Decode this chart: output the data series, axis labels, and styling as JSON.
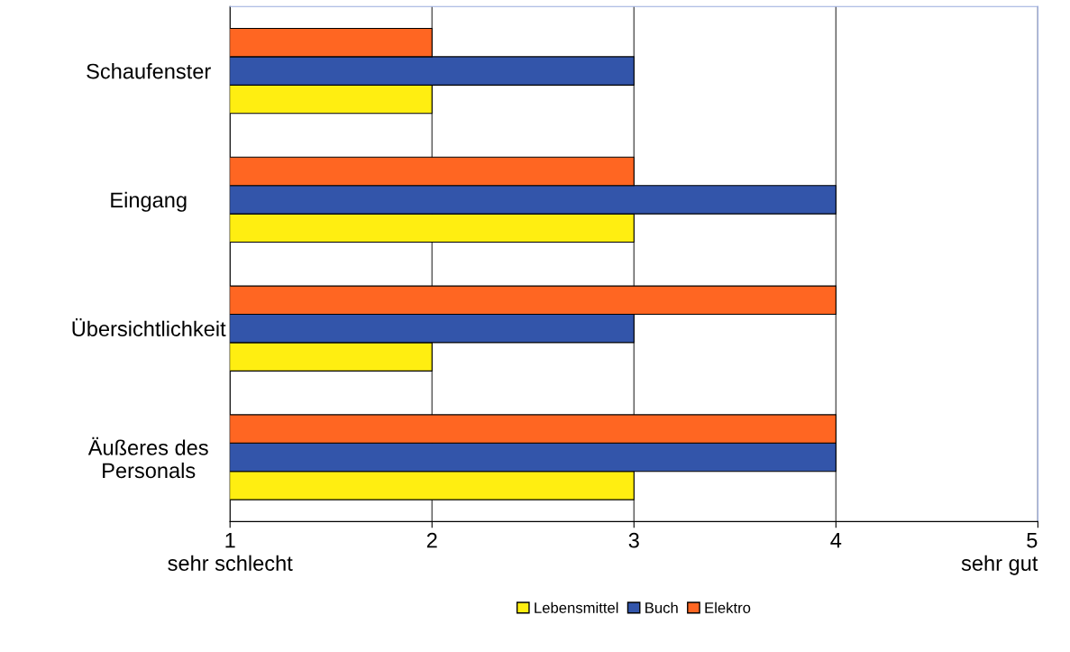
{
  "chart_data": {
    "type": "bar",
    "orientation": "horizontal",
    "categories": [
      "Schaufenster",
      "Eingang",
      "Übersichtlichkeit",
      "Äußeres des\nPersonals"
    ],
    "series": [
      {
        "name": "Lebensmittel",
        "color": "#ffee11",
        "values": [
          2,
          3,
          2,
          3
        ]
      },
      {
        "name": "Buch",
        "color": "#3355aa",
        "values": [
          3,
          4,
          3,
          4
        ]
      },
      {
        "name": "Elektro",
        "color": "#ff6622",
        "values": [
          2,
          3,
          4,
          4
        ]
      }
    ],
    "xlim": [
      1,
      5
    ],
    "xticks": [
      {
        "value": 1,
        "label": "1\nsehr schlecht"
      },
      2,
      3,
      4,
      {
        "value": 5,
        "label": "5\nsehr gut"
      }
    ],
    "grid": "x",
    "legend": "bottom"
  }
}
